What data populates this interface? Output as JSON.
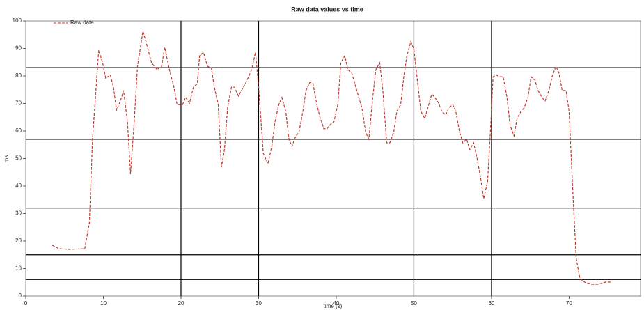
{
  "chart_data": {
    "type": "line",
    "title": "Raw data values vs time",
    "x_label": "time (s)",
    "y_label": "ms",
    "xlim": [
      0,
      79.2
    ],
    "xticks": [
      0,
      10,
      20,
      30,
      40,
      50,
      60,
      70
    ],
    "ylim": [
      0,
      100
    ],
    "yticks": [
      0,
      10,
      20,
      30,
      40,
      50,
      60,
      70,
      80,
      90,
      100
    ],
    "xgrid": [
      20,
      30,
      50,
      60
    ],
    "ygrid": [
      6,
      15,
      32,
      57,
      83
    ],
    "legend": "top-left",
    "series": [
      {
        "name": "Raw data",
        "color": "#c0392b",
        "x": [
          3.4,
          4.3,
          5.7,
          7.6,
          8.2,
          8.6,
          9.4,
          9.9,
          10.3,
          10.9,
          11.3,
          11.7,
          12.2,
          12.6,
          13.1,
          13.5,
          14.0,
          14.4,
          15.1,
          15.5,
          16.2,
          16.9,
          17.5,
          17.9,
          18.5,
          19.1,
          19.5,
          20.2,
          20.6,
          21.1,
          21.6,
          22.1,
          22.4,
          22.9,
          23.4,
          23.9,
          24.3,
          24.8,
          25.2,
          25.6,
          26.0,
          26.5,
          26.9,
          27.4,
          27.8,
          28.3,
          28.7,
          29.1,
          29.6,
          30.0,
          30.6,
          31.2,
          31.7,
          32.1,
          32.6,
          33.0,
          33.5,
          33.9,
          34.3,
          34.8,
          35.2,
          35.7,
          36.1,
          36.6,
          37.0,
          37.5,
          37.9,
          38.4,
          38.8,
          39.3,
          39.7,
          40.2,
          40.6,
          41.1,
          41.5,
          42.0,
          42.4,
          42.9,
          43.3,
          43.8,
          44.2,
          44.7,
          45.1,
          45.6,
          46.0,
          46.5,
          46.9,
          47.4,
          47.8,
          48.3,
          48.7,
          49.1,
          49.6,
          50.0,
          50.5,
          50.9,
          51.4,
          51.8,
          52.3,
          52.7,
          53.2,
          53.6,
          54.1,
          54.5,
          55.0,
          55.4,
          55.9,
          56.3,
          56.8,
          57.2,
          57.7,
          58.1,
          58.6,
          59.0,
          59.5,
          59.9,
          60.2,
          60.6,
          61.1,
          61.5,
          62.0,
          62.4,
          62.9,
          63.3,
          63.8,
          64.2,
          64.7,
          65.1,
          65.6,
          66.0,
          66.5,
          66.9,
          67.4,
          67.8,
          68.3,
          68.7,
          69.1,
          69.6,
          70.0,
          70.5,
          70.9,
          71.4,
          72.0,
          72.9,
          73.8,
          74.7,
          75.4
        ],
        "values": [
          18.5,
          17.2,
          17.0,
          17.2,
          26.6,
          57.0,
          89.4,
          84.8,
          79.2,
          80.3,
          75.9,
          67.6,
          70.9,
          74.7,
          63.3,
          44.3,
          64.6,
          83.5,
          96.2,
          92.4,
          84.8,
          82.3,
          83.5,
          90.4,
          82.3,
          75.9,
          69.6,
          69.6,
          72.2,
          70.1,
          75.9,
          77.2,
          87.3,
          88.6,
          83.5,
          83.0,
          75.9,
          69.6,
          46.8,
          53.2,
          68.4,
          75.9,
          75.9,
          72.7,
          74.7,
          77.2,
          79.7,
          82.3,
          88.6,
          75.9,
          51.9,
          48.1,
          54.4,
          63.3,
          69.6,
          72.2,
          67.1,
          57.0,
          54.4,
          58.2,
          59.5,
          67.1,
          74.7,
          77.7,
          77.2,
          69.6,
          65.1,
          60.8,
          60.8,
          62.5,
          63.3,
          69.6,
          84.8,
          87.3,
          82.3,
          81.0,
          77.2,
          72.2,
          68.4,
          59.5,
          57.0,
          72.2,
          82.3,
          84.8,
          74.7,
          55.7,
          55.7,
          59.5,
          67.1,
          69.6,
          79.7,
          87.3,
          92.4,
          89.9,
          77.2,
          67.1,
          64.6,
          68.4,
          73.4,
          72.2,
          70.1,
          67.1,
          65.8,
          68.4,
          69.6,
          67.1,
          59.5,
          55.7,
          57.0,
          53.2,
          55.7,
          50.6,
          43.0,
          35.4,
          41.8,
          62.0,
          79.7,
          80.3,
          79.7,
          79.7,
          72.2,
          62.0,
          58.2,
          64.6,
          67.1,
          68.4,
          72.2,
          79.7,
          78.5,
          74.7,
          72.2,
          70.9,
          74.7,
          79.7,
          83.5,
          81.0,
          74.7,
          74.7,
          67.1,
          36.7,
          13.9,
          6.3,
          5.1,
          4.3,
          4.3,
          5.1,
          5.1
        ]
      }
    ]
  }
}
